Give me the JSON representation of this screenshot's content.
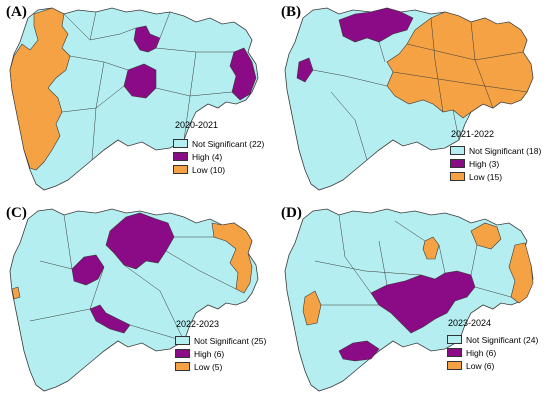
{
  "colors": {
    "not_significant": "#b4eef0",
    "high": "#8b0a86",
    "low": "#f4a244",
    "border": "#3a3a3a"
  },
  "panels": [
    {
      "letter": "(A)",
      "year": "2020-2021",
      "legend": [
        {
          "label": "Not Significant (22)",
          "category": "not_significant"
        },
        {
          "label": "High (4)",
          "category": "high"
        },
        {
          "label": "Low (10)",
          "category": "low"
        }
      ]
    },
    {
      "letter": "(B)",
      "year": "2021-2022",
      "legend": [
        {
          "label": "Not Significant (18)",
          "category": "not_significant"
        },
        {
          "label": "High (3)",
          "category": "high"
        },
        {
          "label": "Low (15)",
          "category": "low"
        }
      ]
    },
    {
      "letter": "(C)",
      "year": "2022-2023",
      "legend": [
        {
          "label": "Not Significant (25)",
          "category": "not_significant"
        },
        {
          "label": "High (6)",
          "category": "high"
        },
        {
          "label": "Low (5)",
          "category": "low"
        }
      ]
    },
    {
      "letter": "(D)",
      "year": "2023-2024",
      "legend": [
        {
          "label": "Not Significant (24)",
          "category": "not_significant"
        },
        {
          "label": "High (6)",
          "category": "high"
        },
        {
          "label": "Low (6)",
          "category": "low"
        }
      ]
    }
  ]
}
